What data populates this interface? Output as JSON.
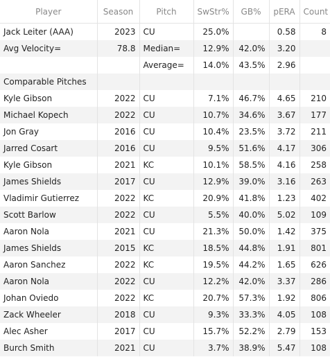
{
  "columns": [
    "Player",
    "Season",
    "Pitch",
    "SwStr%",
    "GB%",
    "pERA",
    "Count"
  ],
  "rows": [
    [
      "Jack Leiter (AAA)",
      "2023",
      "CU",
      "25.0%",
      "",
      "0.58",
      "8"
    ],
    [
      "Avg Velocity=",
      "78.8",
      "Median=",
      "12.9%",
      "42.0%",
      "3.20",
      ""
    ],
    [
      "",
      "",
      "Average=",
      "14.0%",
      "43.5%",
      "2.96",
      ""
    ],
    [
      "Comparable Pitches",
      "",
      "",
      "",
      "",
      "",
      ""
    ],
    [
      "Kyle Gibson",
      "2022",
      "CU",
      "7.1%",
      "46.7%",
      "4.65",
      "210"
    ],
    [
      "Michael Kopech",
      "2022",
      "CU",
      "10.7%",
      "34.6%",
      "3.67",
      "177"
    ],
    [
      "Jon Gray",
      "2016",
      "CU",
      "10.4%",
      "23.5%",
      "3.72",
      "211"
    ],
    [
      "Jarred Cosart",
      "2016",
      "CU",
      "9.5%",
      "51.6%",
      "4.17",
      "306"
    ],
    [
      "Kyle Gibson",
      "2021",
      "KC",
      "10.1%",
      "58.5%",
      "4.16",
      "258"
    ],
    [
      "James Shields",
      "2017",
      "CU",
      "12.9%",
      "39.0%",
      "3.16",
      "263"
    ],
    [
      "Vladimir Gutierrez",
      "2022",
      "KC",
      "20.9%",
      "41.8%",
      "1.23",
      "402"
    ],
    [
      "Scott Barlow",
      "2022",
      "CU",
      "5.5%",
      "40.0%",
      "5.02",
      "109"
    ],
    [
      "Aaron Nola",
      "2021",
      "CU",
      "21.3%",
      "50.0%",
      "1.42",
      "375"
    ],
    [
      "James Shields",
      "2015",
      "KC",
      "18.5%",
      "44.8%",
      "1.91",
      "801"
    ],
    [
      "Aaron Sanchez",
      "2022",
      "KC",
      "19.5%",
      "44.2%",
      "1.65",
      "626"
    ],
    [
      "Aaron Nola",
      "2022",
      "CU",
      "12.2%",
      "42.0%",
      "3.37",
      "286"
    ],
    [
      "Johan Oviedo",
      "2022",
      "KC",
      "20.7%",
      "57.3%",
      "1.92",
      "806"
    ],
    [
      "Zack Wheeler",
      "2018",
      "CU",
      "9.3%",
      "33.3%",
      "4.05",
      "108"
    ],
    [
      "Alec Asher",
      "2017",
      "CU",
      "15.7%",
      "52.2%",
      "2.79",
      "153"
    ],
    [
      "Burch Smith",
      "2021",
      "CU",
      "3.7%",
      "38.9%",
      "5.47",
      "108"
    ]
  ]
}
